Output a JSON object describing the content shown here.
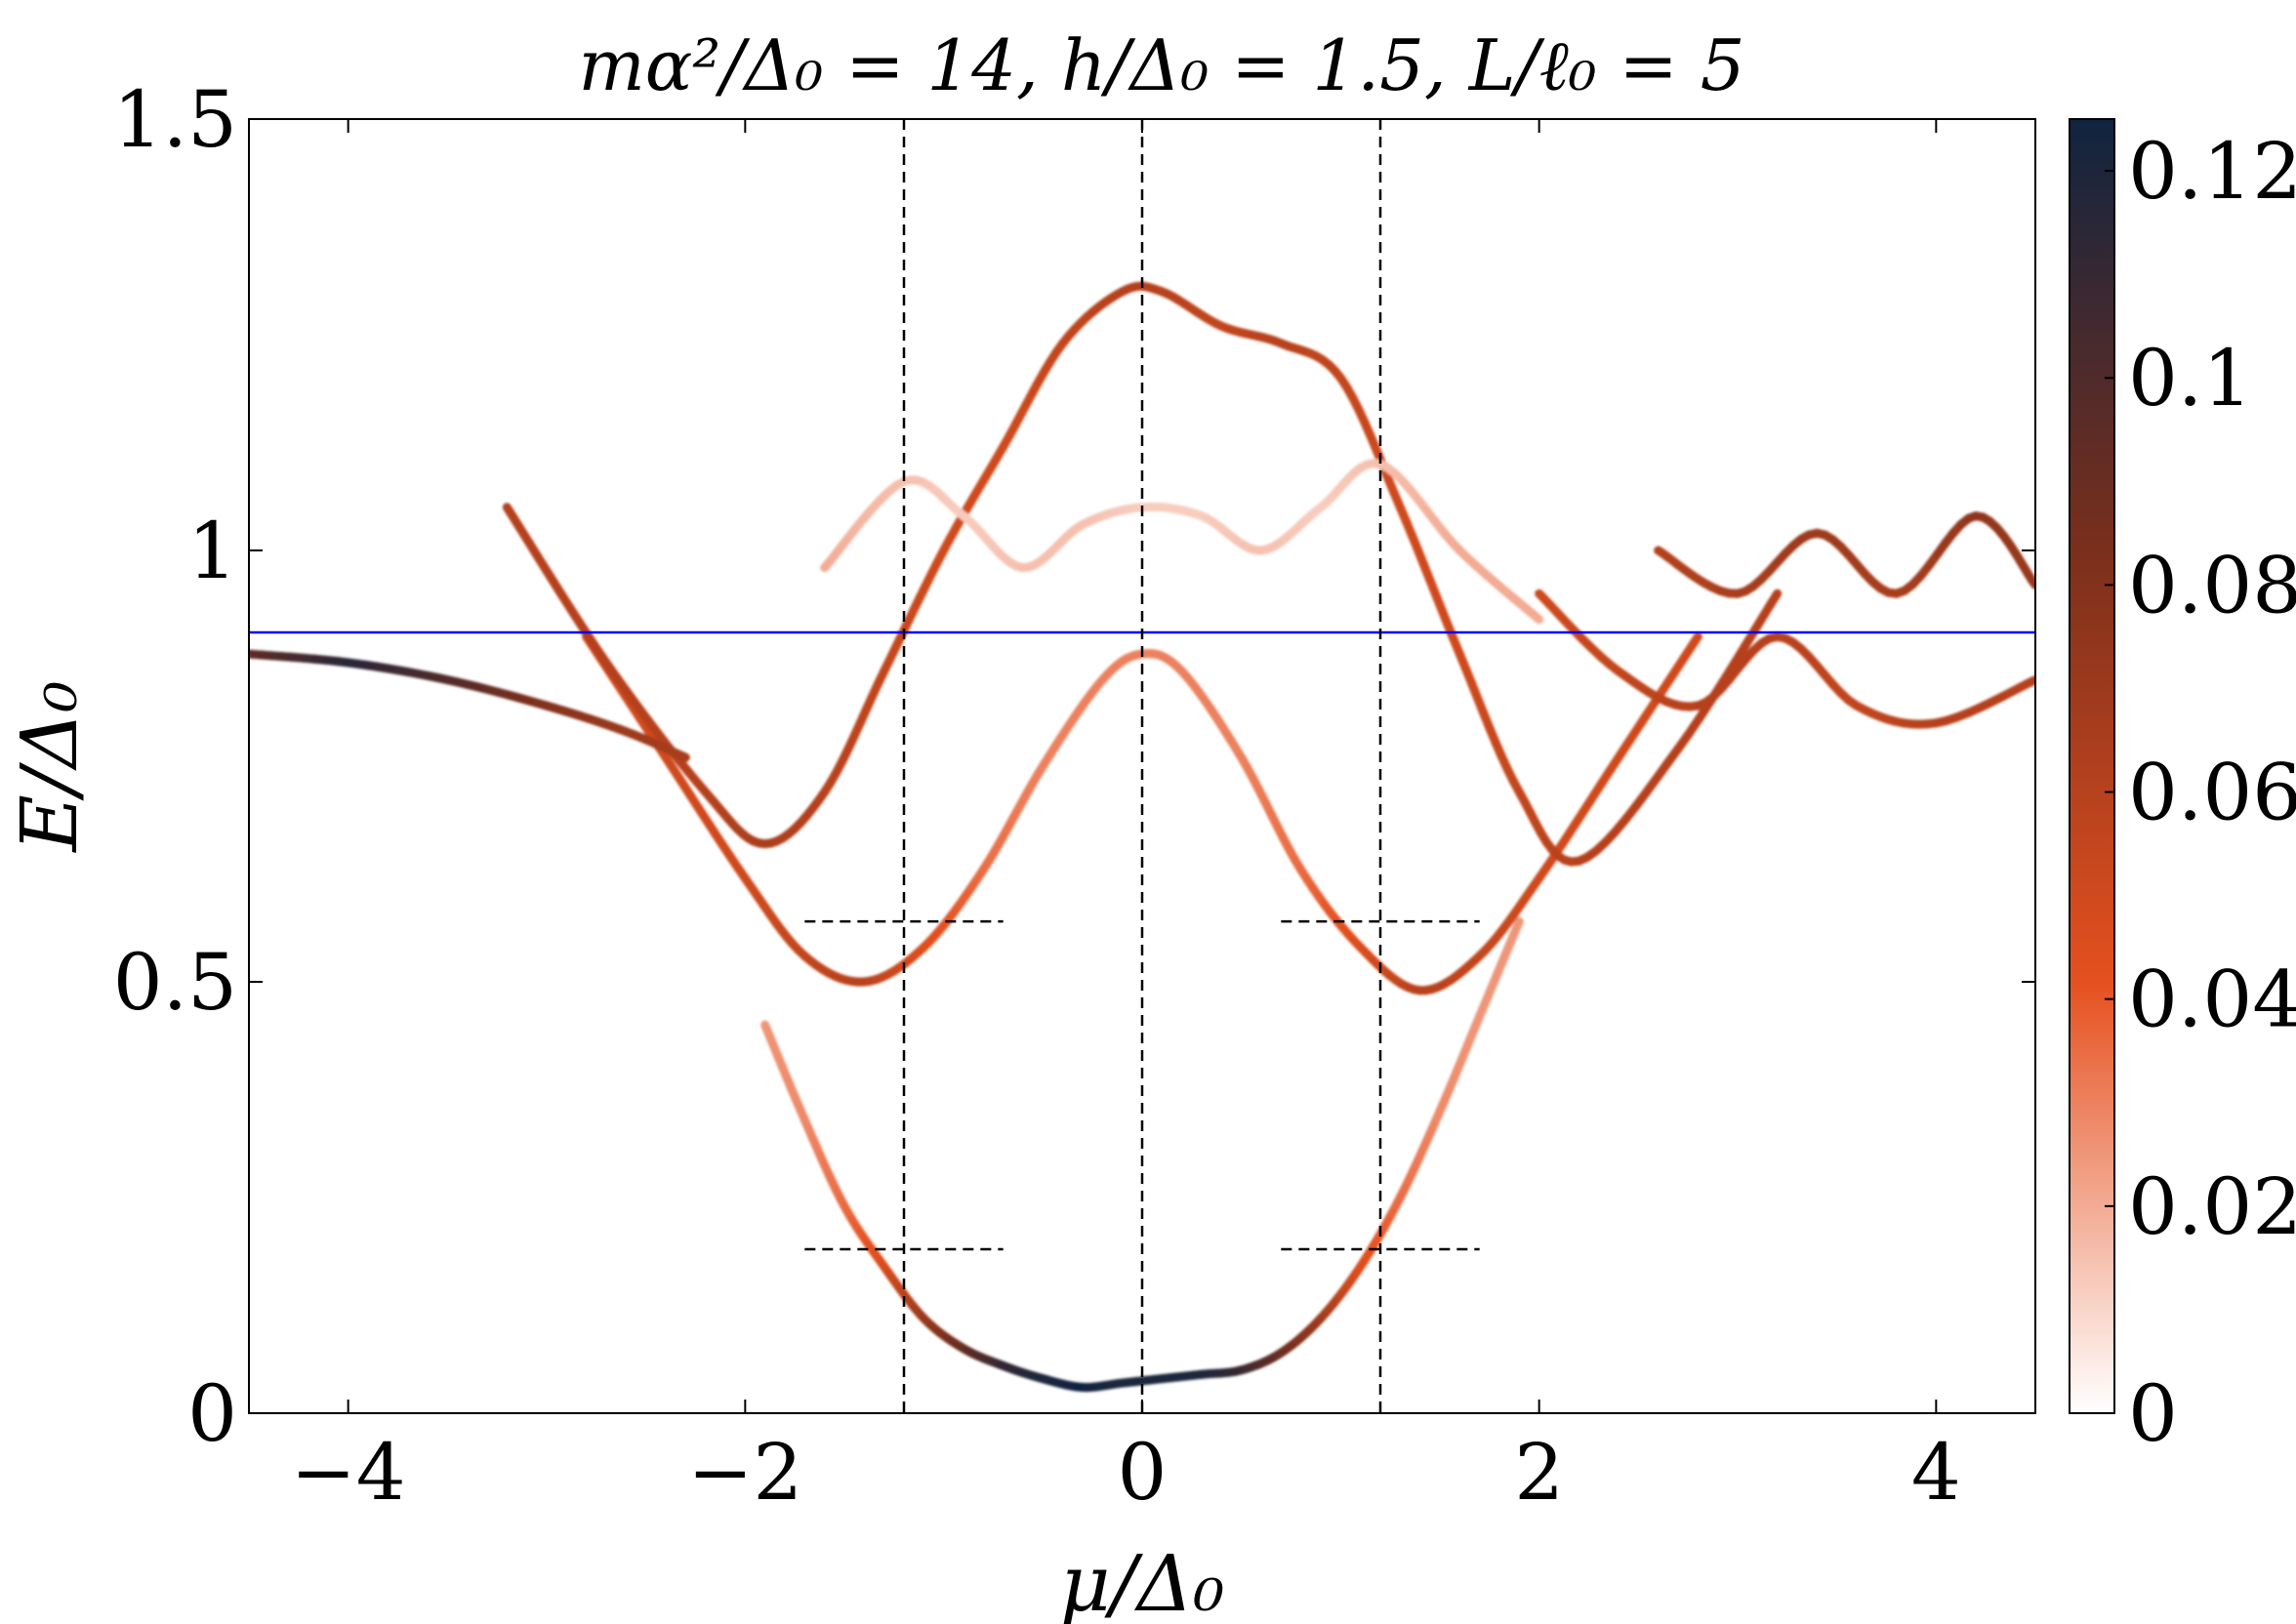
{
  "chart_data": {
    "type": "heatmap",
    "title": "mα²/Δ₀ = 14, h/Δ₀ = 1.5, L/ℓ₀ = 5",
    "xlabel": "μ/Δ₀",
    "ylabel": "E/Δ₀",
    "xlim": [
      -4.5,
      4.5
    ],
    "ylim": [
      0,
      1.5
    ],
    "xticks": [
      -4,
      -2,
      0,
      2,
      4
    ],
    "xtick_labels": [
      "−4",
      "−2",
      "0",
      "2",
      "4"
    ],
    "yticks": [
      0,
      0.5,
      1,
      1.5
    ],
    "ytick_labels": [
      "0",
      "0.5",
      "1",
      "1.5"
    ],
    "colorbar": {
      "range": [
        0,
        0.125
      ],
      "ticks": [
        0,
        0.02,
        0.04,
        0.06,
        0.08,
        0.1,
        0.12
      ],
      "tick_labels": [
        "0",
        "0.02",
        "0.04",
        "0.06",
        "0.08",
        "0.1",
        "0.12"
      ],
      "colors": [
        "#ffffff",
        "#e5501f",
        "#7a2f1c",
        "#102440"
      ]
    },
    "grid": false,
    "reference_lines": [
      {
        "orientation": "horizontal",
        "y": 0.905,
        "color": "#0000ff",
        "style": "solid"
      },
      {
        "orientation": "vertical",
        "x": -1.2,
        "color": "#000000",
        "style": "dashed"
      },
      {
        "orientation": "vertical",
        "x": 0,
        "color": "#000000",
        "style": "dashed"
      },
      {
        "orientation": "vertical",
        "x": 1.2,
        "color": "#000000",
        "style": "dashed"
      },
      {
        "orientation": "horizontal",
        "y": 0.57,
        "x": [
          -1.7,
          -0.7
        ],
        "color": "#000000",
        "style": "dashed"
      },
      {
        "orientation": "horizontal",
        "y": 0.57,
        "x": [
          0.7,
          1.7
        ],
        "color": "#000000",
        "style": "dashed"
      },
      {
        "orientation": "horizontal",
        "y": 0.19,
        "x": [
          -1.7,
          -0.7
        ],
        "color": "#000000",
        "style": "dashed"
      },
      {
        "orientation": "horizontal",
        "y": 0.19,
        "x": [
          0.7,
          1.7
        ],
        "color": "#000000",
        "style": "dashed"
      }
    ],
    "series": [
      {
        "x": [
          -1.9,
          -1.7,
          -1.5,
          -1.3,
          -1.1,
          -0.9,
          -0.7,
          -0.5,
          -0.3,
          -0.1,
          0.1,
          0.3,
          0.5,
          0.7,
          0.9,
          1.1,
          1.3,
          1.5,
          1.7,
          1.9
        ],
        "y": [
          0.45,
          0.34,
          0.24,
          0.17,
          0.11,
          0.075,
          0.055,
          0.04,
          0.03,
          0.035,
          0.04,
          0.045,
          0.05,
          0.07,
          0.11,
          0.17,
          0.25,
          0.35,
          0.46,
          0.57
        ],
        "weight": [
          0.025,
          0.028,
          0.035,
          0.045,
          0.07,
          0.09,
          0.11,
          0.12,
          0.125,
          0.12,
          0.12,
          0.12,
          0.11,
          0.09,
          0.07,
          0.045,
          0.035,
          0.028,
          0.025,
          0.025
        ]
      },
      {
        "x": [
          -2.8,
          -2.4,
          -2.0,
          -1.7,
          -1.4,
          -1.1,
          -0.8,
          -0.5,
          -0.2,
          0.0,
          0.2,
          0.5,
          0.8,
          1.1,
          1.4,
          1.7,
          2.0,
          2.4,
          2.8
        ],
        "y": [
          0.9,
          0.76,
          0.62,
          0.53,
          0.5,
          0.54,
          0.63,
          0.75,
          0.85,
          0.88,
          0.86,
          0.76,
          0.63,
          0.54,
          0.49,
          0.53,
          0.62,
          0.76,
          0.9
        ],
        "weight": [
          0.05,
          0.05,
          0.05,
          0.055,
          0.06,
          0.045,
          0.035,
          0.03,
          0.03,
          0.03,
          0.03,
          0.03,
          0.035,
          0.045,
          0.06,
          0.055,
          0.05,
          0.05,
          0.05
        ]
      },
      {
        "x": [
          -3.2,
          -2.7,
          -2.2,
          -1.9,
          -1.6,
          -1.3,
          -1.0,
          -0.7,
          -0.4,
          -0.1,
          0.1,
          0.4,
          0.7,
          1.0,
          1.3,
          1.6,
          1.9,
          2.2,
          2.7,
          3.2
        ],
        "y": [
          1.05,
          0.87,
          0.72,
          0.66,
          0.72,
          0.86,
          1.0,
          1.12,
          1.24,
          1.3,
          1.3,
          1.26,
          1.24,
          1.2,
          1.05,
          0.88,
          0.72,
          0.64,
          0.77,
          0.95
        ],
        "weight": [
          0.06,
          0.06,
          0.06,
          0.065,
          0.06,
          0.055,
          0.05,
          0.05,
          0.055,
          0.06,
          0.06,
          0.055,
          0.06,
          0.055,
          0.05,
          0.05,
          0.055,
          0.06,
          0.06,
          0.06
        ]
      },
      {
        "x": [
          -4.5,
          -4.0,
          -3.5,
          -3.0,
          -2.6,
          -2.3
        ],
        "y": [
          0.88,
          0.87,
          0.85,
          0.82,
          0.79,
          0.76
        ],
        "weight": [
          0.09,
          0.115,
          0.1,
          0.08,
          0.07,
          0.065
        ]
      },
      {
        "x": [
          -1.6,
          -1.2,
          -0.9,
          -0.6,
          -0.3,
          0.0,
          0.3,
          0.6,
          0.9,
          1.2,
          1.6,
          2.0
        ],
        "y": [
          0.98,
          1.08,
          1.04,
          0.98,
          1.03,
          1.05,
          1.04,
          1.0,
          1.05,
          1.1,
          1.0,
          0.92
        ],
        "weight": [
          0.02,
          0.015,
          0.012,
          0.015,
          0.015,
          0.012,
          0.012,
          0.015,
          0.012,
          0.015,
          0.02,
          0.02
        ]
      },
      {
        "x": [
          2.0,
          2.4,
          2.8,
          3.2,
          3.6,
          4.0,
          4.5
        ],
        "y": [
          0.95,
          0.86,
          0.82,
          0.9,
          0.82,
          0.8,
          0.85
        ],
        "weight": [
          0.05,
          0.055,
          0.06,
          0.06,
          0.055,
          0.06,
          0.06
        ]
      },
      {
        "x": [
          2.6,
          3.0,
          3.4,
          3.8,
          4.2,
          4.5
        ],
        "y": [
          1.0,
          0.95,
          1.02,
          0.95,
          1.04,
          0.96
        ],
        "weight": [
          0.06,
          0.065,
          0.07,
          0.065,
          0.075,
          0.07
        ]
      }
    ]
  }
}
